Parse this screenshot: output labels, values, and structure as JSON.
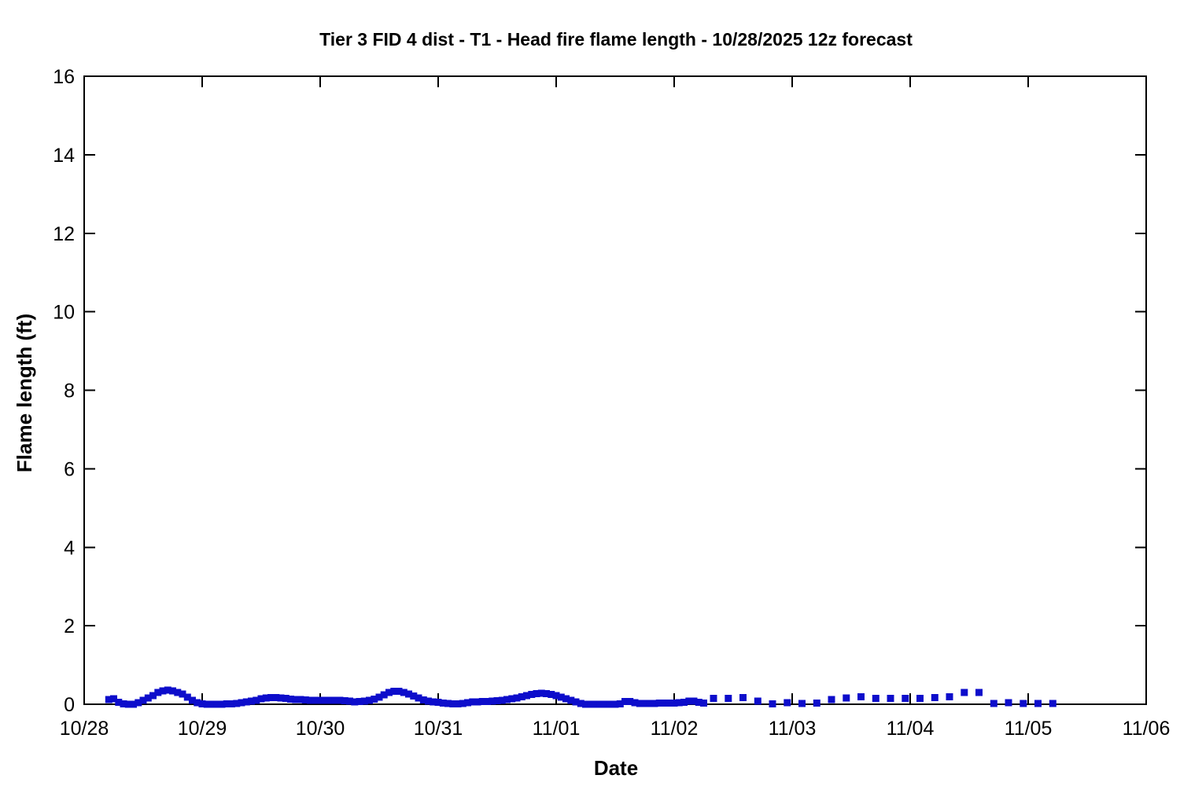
{
  "chart_data": {
    "type": "scatter",
    "title": "Tier 3 FID 4 dist - T1 - Head fire flame length - 10/28/2025 12z forecast",
    "xlabel": "Date",
    "ylabel": "Flame length (ft)",
    "legend": "none",
    "grid": false,
    "marker": "filled-square",
    "marker_color": "#0d0dcb",
    "marker_size_px": 9,
    "axis_color": "#000000",
    "xlim_hours_from_1028_00z": [
      0,
      216
    ],
    "ylim": [
      0,
      16
    ],
    "x_ticks": {
      "labels": [
        "10/28",
        "10/29",
        "10/30",
        "10/31",
        "11/01",
        "11/02",
        "11/03",
        "11/04",
        "11/05",
        "11/06"
      ],
      "hours": [
        0,
        24,
        48,
        72,
        96,
        120,
        144,
        168,
        192,
        216
      ]
    },
    "y_ticks": [
      0,
      2,
      4,
      6,
      8,
      10,
      12,
      14,
      16
    ],
    "series": [
      {
        "name": "Head fire flame length (ft)",
        "note": "hourly points 10/28 05z - 11/02 06z, then 3-hourly points to 11/05 05z; x = hours since 10/28 00z",
        "points": [
          [
            5,
            0.12
          ],
          [
            6,
            0.14
          ],
          [
            7,
            0.05
          ],
          [
            8,
            0.01
          ],
          [
            9,
            0
          ],
          [
            10,
            0
          ],
          [
            11,
            0.04
          ],
          [
            12,
            0.1
          ],
          [
            13,
            0.16
          ],
          [
            14,
            0.22
          ],
          [
            15,
            0.3
          ],
          [
            16,
            0.34
          ],
          [
            17,
            0.36
          ],
          [
            18,
            0.34
          ],
          [
            19,
            0.3
          ],
          [
            20,
            0.26
          ],
          [
            21,
            0.18
          ],
          [
            22,
            0.1
          ],
          [
            23,
            0.04
          ],
          [
            24,
            0.01
          ],
          [
            25,
            0
          ],
          [
            26,
            0
          ],
          [
            27,
            0
          ],
          [
            28,
            0
          ],
          [
            29,
            0.01
          ],
          [
            30,
            0.01
          ],
          [
            31,
            0.02
          ],
          [
            32,
            0.04
          ],
          [
            33,
            0.06
          ],
          [
            34,
            0.08
          ],
          [
            35,
            0.1
          ],
          [
            36,
            0.14
          ],
          [
            37,
            0.16
          ],
          [
            38,
            0.17
          ],
          [
            39,
            0.17
          ],
          [
            40,
            0.16
          ],
          [
            41,
            0.15
          ],
          [
            42,
            0.13
          ],
          [
            43,
            0.12
          ],
          [
            44,
            0.12
          ],
          [
            45,
            0.11
          ],
          [
            46,
            0.1
          ],
          [
            47,
            0.1
          ],
          [
            48,
            0.1
          ],
          [
            49,
            0.1
          ],
          [
            50,
            0.1
          ],
          [
            51,
            0.1
          ],
          [
            52,
            0.1
          ],
          [
            53,
            0.09
          ],
          [
            54,
            0.08
          ],
          [
            55,
            0.06
          ],
          [
            56,
            0.07
          ],
          [
            57,
            0.08
          ],
          [
            58,
            0.1
          ],
          [
            59,
            0.13
          ],
          [
            60,
            0.18
          ],
          [
            61,
            0.24
          ],
          [
            62,
            0.3
          ],
          [
            63,
            0.33
          ],
          [
            64,
            0.33
          ],
          [
            65,
            0.3
          ],
          [
            66,
            0.26
          ],
          [
            67,
            0.21
          ],
          [
            68,
            0.16
          ],
          [
            69,
            0.11
          ],
          [
            70,
            0.08
          ],
          [
            71,
            0.06
          ],
          [
            72,
            0.05
          ],
          [
            73,
            0.03
          ],
          [
            74,
            0.02
          ],
          [
            75,
            0.01
          ],
          [
            76,
            0.01
          ],
          [
            77,
            0.02
          ],
          [
            78,
            0.04
          ],
          [
            79,
            0.06
          ],
          [
            80,
            0.06
          ],
          [
            81,
            0.07
          ],
          [
            82,
            0.07
          ],
          [
            83,
            0.08
          ],
          [
            84,
            0.09
          ],
          [
            85,
            0.1
          ],
          [
            86,
            0.12
          ],
          [
            87,
            0.14
          ],
          [
            88,
            0.16
          ],
          [
            89,
            0.19
          ],
          [
            90,
            0.22
          ],
          [
            91,
            0.25
          ],
          [
            92,
            0.27
          ],
          [
            93,
            0.28
          ],
          [
            94,
            0.27
          ],
          [
            95,
            0.25
          ],
          [
            96,
            0.22
          ],
          [
            97,
            0.18
          ],
          [
            98,
            0.14
          ],
          [
            99,
            0.1
          ],
          [
            100,
            0.06
          ],
          [
            101,
            0.02
          ],
          [
            102,
            0
          ],
          [
            103,
            0
          ],
          [
            104,
            0
          ],
          [
            105,
            0
          ],
          [
            106,
            0
          ],
          [
            107,
            0
          ],
          [
            108,
            0
          ],
          [
            109,
            0.01
          ],
          [
            110,
            0.07
          ],
          [
            111,
            0.07
          ],
          [
            112,
            0.04
          ],
          [
            113,
            0.02
          ],
          [
            114,
            0.02
          ],
          [
            115,
            0.02
          ],
          [
            116,
            0.02
          ],
          [
            117,
            0.03
          ],
          [
            118,
            0.03
          ],
          [
            119,
            0.03
          ],
          [
            120,
            0.03
          ],
          [
            121,
            0.04
          ],
          [
            122,
            0.05
          ],
          [
            123,
            0.08
          ],
          [
            124,
            0.08
          ],
          [
            125,
            0.05
          ],
          [
            126,
            0.03
          ],
          [
            128,
            0.15
          ],
          [
            131,
            0.15
          ],
          [
            134,
            0.17
          ],
          [
            137,
            0.08
          ],
          [
            140,
            0.01
          ],
          [
            143,
            0.04
          ],
          [
            146,
            0.02
          ],
          [
            149,
            0.03
          ],
          [
            152,
            0.12
          ],
          [
            155,
            0.16
          ],
          [
            158,
            0.19
          ],
          [
            161,
            0.15
          ],
          [
            164,
            0.15
          ],
          [
            167,
            0.15
          ],
          [
            170,
            0.15
          ],
          [
            173,
            0.17
          ],
          [
            176,
            0.19
          ],
          [
            179,
            0.3
          ],
          [
            182,
            0.3
          ],
          [
            185,
            0.02
          ],
          [
            188,
            0.04
          ],
          [
            191,
            0.02
          ],
          [
            194,
            0.02
          ],
          [
            197,
            0.02
          ]
        ]
      }
    ]
  }
}
